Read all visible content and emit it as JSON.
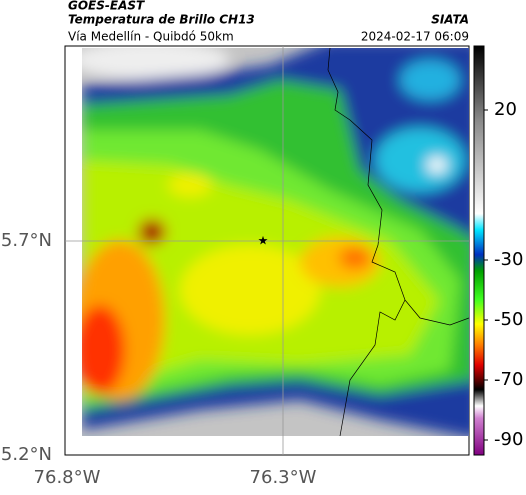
{
  "header": {
    "source": "GOES-EAST",
    "title": "Temperatura de Brillo CH13",
    "credit": "SIATA",
    "subtitle": "Vía Medellín - Quibdó 50km",
    "timestamp": "2024-02-17 06:09"
  },
  "map": {
    "lat_labels": [
      "5.7°N",
      "5.2°N"
    ],
    "lon_labels": [
      "76.8°W",
      "76.3°W"
    ]
  },
  "colorbar": {
    "ticks": [
      20,
      -30,
      -50,
      -70,
      -90
    ]
  }
}
